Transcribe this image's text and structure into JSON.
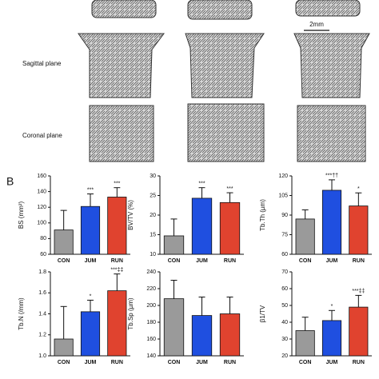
{
  "labels": {
    "sagittal": "Sagittal plane",
    "coronal": "Coronal plane",
    "scale": "2mm",
    "panel": "B"
  },
  "chart_data": [
    {
      "type": "bar",
      "ylabel": "BS (mm²)",
      "categories": [
        "CON",
        "JUM",
        "RUN"
      ],
      "values": [
        91,
        121,
        133
      ],
      "errors": [
        25,
        16,
        12
      ],
      "annotations": [
        null,
        "***",
        "***"
      ],
      "colors": [
        "#9a9a9a",
        "#1f4fe0",
        "#e0432f"
      ],
      "ylim": [
        60,
        160
      ],
      "yticks": [
        60,
        80,
        100,
        120,
        140,
        160
      ]
    },
    {
      "type": "bar",
      "ylabel": "BV/TV (%)",
      "categories": [
        "CON",
        "JUM",
        "RUN"
      ],
      "values": [
        14.7,
        24.3,
        23.2
      ],
      "errors": [
        4.3,
        2.7,
        2.5
      ],
      "annotations": [
        null,
        "***",
        "***"
      ],
      "colors": [
        "#9a9a9a",
        "#1f4fe0",
        "#e0432f"
      ],
      "ylim": [
        10,
        30
      ],
      "yticks": [
        10,
        15,
        20,
        25,
        30
      ]
    },
    {
      "type": "bar",
      "ylabel": "Tb.Th (µm)",
      "categories": [
        "CON",
        "JUM",
        "RUN"
      ],
      "values": [
        87,
        109,
        97
      ],
      "errors": [
        7,
        8,
        10
      ],
      "annotations": [
        null,
        "***††",
        "*"
      ],
      "colors": [
        "#9a9a9a",
        "#1f4fe0",
        "#e0432f"
      ],
      "ylim": [
        60,
        120
      ],
      "yticks": [
        60,
        75,
        90,
        105,
        120
      ]
    },
    {
      "type": "bar",
      "ylabel": "Tb.N (/mm)",
      "categories": [
        "CON",
        "JUM",
        "RUN"
      ],
      "values": [
        1.16,
        1.42,
        1.62
      ],
      "errors": [
        0.31,
        0.11,
        0.16
      ],
      "annotations": [
        null,
        "*",
        "***‡‡"
      ],
      "colors": [
        "#9a9a9a",
        "#1f4fe0",
        "#e0432f"
      ],
      "ylim": [
        1,
        1.8
      ],
      "yticks": [
        {
          "value": 1,
          "label": "1.0"
        },
        1.2,
        1.4,
        1.6,
        1.8
      ]
    },
    {
      "type": "bar",
      "ylabel": "Tb.Sp (µm)",
      "categories": [
        "CON",
        "JUM",
        "RUN"
      ],
      "values": [
        208,
        188,
        190
      ],
      "errors": [
        22,
        22,
        20
      ],
      "annotations": [
        null,
        null,
        null
      ],
      "colors": [
        "#9a9a9a",
        "#1f4fe0",
        "#e0432f"
      ],
      "ylim": [
        140,
        240
      ],
      "yticks": [
        140,
        160,
        180,
        200,
        220,
        240
      ]
    },
    {
      "type": "bar",
      "ylabel": "β1/TV",
      "categories": [
        "CON",
        "JUM",
        "RUN"
      ],
      "values": [
        35,
        41,
        49
      ],
      "errors": [
        8,
        6,
        7
      ],
      "annotations": [
        null,
        "*",
        "***‡‡"
      ],
      "colors": [
        "#9a9a9a",
        "#1f4fe0",
        "#e0432f"
      ],
      "ylim": [
        20,
        70
      ],
      "yticks": [
        20,
        30,
        40,
        50,
        60,
        70
      ]
    }
  ]
}
